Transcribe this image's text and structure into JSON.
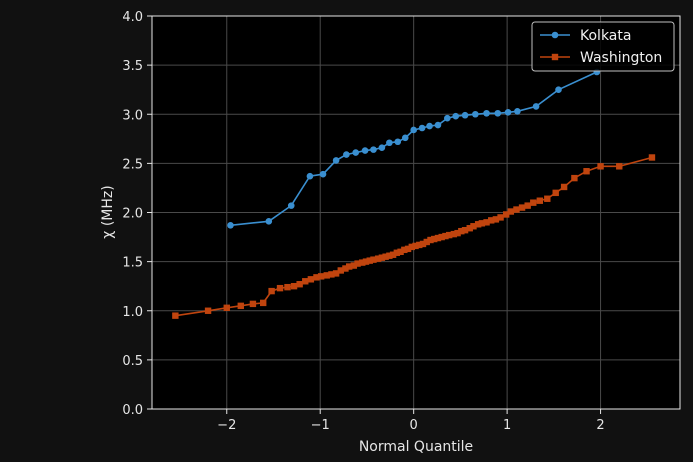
{
  "chart_data": {
    "type": "line",
    "xlabel": "Normal Quantile",
    "ylabel": "χ (MHz)",
    "xlim": [
      -2.8,
      2.85
    ],
    "ylim": [
      0.0,
      4.0
    ],
    "x_ticks": [
      -2,
      -1,
      0,
      1,
      2
    ],
    "x_tick_labels": [
      "−2",
      "−1",
      "0",
      "1",
      "2"
    ],
    "y_ticks": [
      0.0,
      0.5,
      1.0,
      1.5,
      2.0,
      2.5,
      3.0,
      3.5,
      4.0
    ],
    "y_tick_labels": [
      "0.0",
      "0.5",
      "1.0",
      "1.5",
      "2.0",
      "2.5",
      "3.0",
      "3.5",
      "4.0"
    ],
    "grid": true,
    "legend_position": "upper-right",
    "series": [
      {
        "name": "Kolkata",
        "color": "#3a8fd0",
        "marker": "circle",
        "x": [
          -1.96,
          -1.55,
          -1.31,
          -1.11,
          -0.97,
          -0.83,
          -0.72,
          -0.62,
          -0.52,
          -0.43,
          -0.34,
          -0.26,
          -0.17,
          -0.09,
          0.0,
          0.09,
          0.17,
          0.26,
          0.36,
          0.45,
          0.55,
          0.66,
          0.78,
          0.9,
          1.01,
          1.11,
          1.31,
          1.55,
          1.96
        ],
        "y": [
          1.87,
          1.91,
          2.07,
          2.37,
          2.39,
          2.53,
          2.59,
          2.61,
          2.63,
          2.64,
          2.66,
          2.71,
          2.72,
          2.76,
          2.84,
          2.86,
          2.88,
          2.89,
          2.96,
          2.98,
          2.99,
          3.0,
          3.01,
          3.01,
          3.02,
          3.03,
          3.08,
          3.25,
          3.43
        ]
      },
      {
        "name": "Washington",
        "color": "#c0440e",
        "marker": "square",
        "x": [
          -2.55,
          -2.2,
          -2.0,
          -1.85,
          -1.72,
          -1.61,
          -1.52,
          -1.43,
          -1.35,
          -1.28,
          -1.22,
          -1.16,
          -1.1,
          -1.04,
          -0.99,
          -0.93,
          -0.88,
          -0.83,
          -0.78,
          -0.73,
          -0.69,
          -0.64,
          -0.6,
          -0.55,
          -0.51,
          -0.47,
          -0.43,
          -0.38,
          -0.34,
          -0.3,
          -0.26,
          -0.22,
          -0.18,
          -0.14,
          -0.1,
          -0.06,
          -0.02,
          0.02,
          0.06,
          0.1,
          0.14,
          0.18,
          0.22,
          0.26,
          0.3,
          0.34,
          0.38,
          0.43,
          0.47,
          0.51,
          0.55,
          0.6,
          0.64,
          0.69,
          0.73,
          0.78,
          0.83,
          0.88,
          0.93,
          0.99,
          1.04,
          1.1,
          1.16,
          1.22,
          1.28,
          1.35,
          1.43,
          1.52,
          1.61,
          1.72,
          1.85,
          2.0,
          2.2,
          2.55
        ],
        "y": [
          0.95,
          1.0,
          1.03,
          1.05,
          1.07,
          1.08,
          1.2,
          1.23,
          1.24,
          1.25,
          1.27,
          1.3,
          1.32,
          1.34,
          1.35,
          1.36,
          1.37,
          1.38,
          1.41,
          1.43,
          1.45,
          1.46,
          1.48,
          1.49,
          1.5,
          1.51,
          1.52,
          1.53,
          1.54,
          1.55,
          1.56,
          1.57,
          1.59,
          1.6,
          1.62,
          1.63,
          1.65,
          1.66,
          1.67,
          1.68,
          1.7,
          1.72,
          1.73,
          1.74,
          1.75,
          1.76,
          1.77,
          1.78,
          1.79,
          1.81,
          1.82,
          1.84,
          1.86,
          1.88,
          1.89,
          1.9,
          1.92,
          1.93,
          1.95,
          1.98,
          2.01,
          2.03,
          2.05,
          2.07,
          2.1,
          2.12,
          2.14,
          2.2,
          2.26,
          2.35,
          2.42,
          2.47,
          2.47,
          2.56
        ]
      }
    ]
  }
}
